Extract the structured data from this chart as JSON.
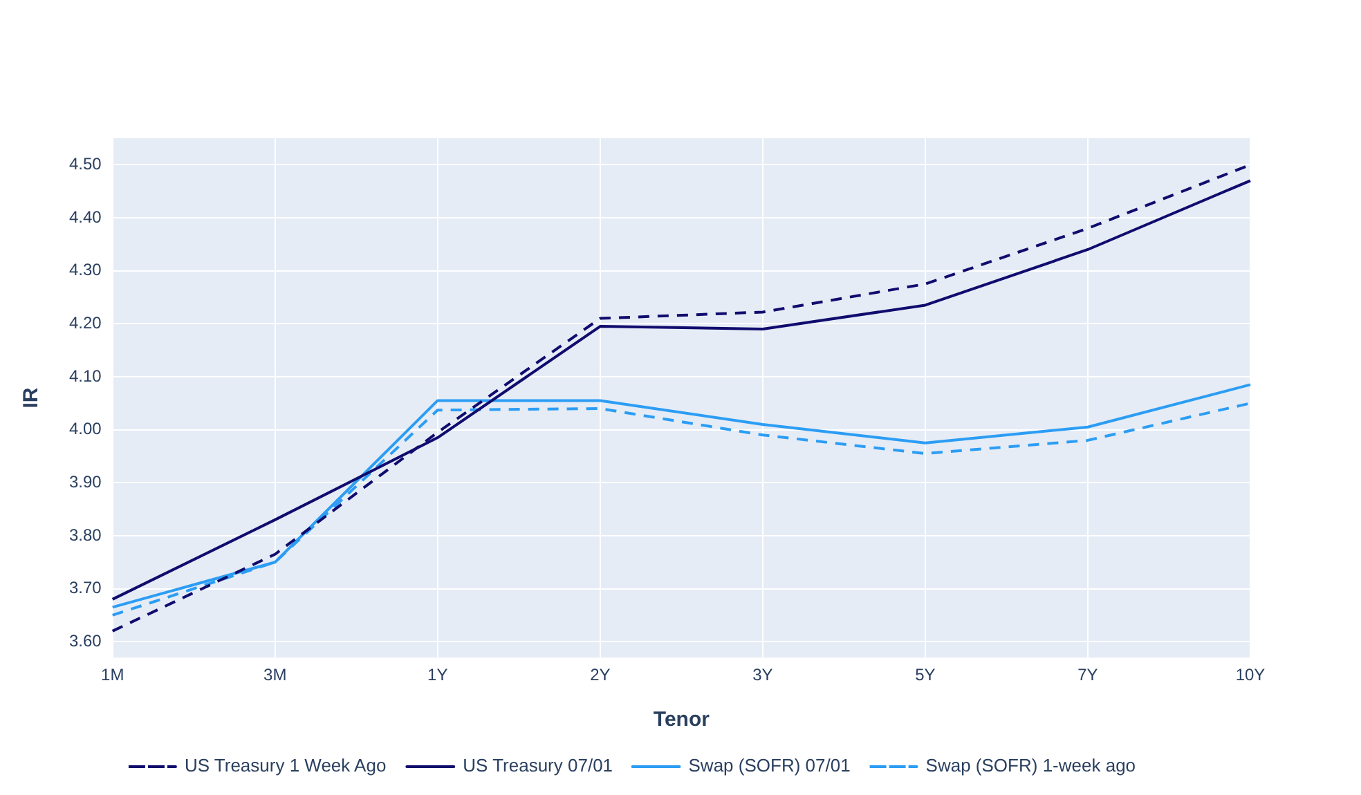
{
  "chart_data": {
    "type": "line",
    "xlabel": "Tenor",
    "ylabel": "IR",
    "categories": [
      "1M",
      "3M",
      "1Y",
      "2Y",
      "3Y",
      "5Y",
      "7Y",
      "10Y"
    ],
    "series": [
      {
        "name": "US Treasury 1 Week Ago",
        "color": "#100c6e",
        "line_style": "dashed",
        "values": [
          3.62,
          3.765,
          3.995,
          4.21,
          4.222,
          4.275,
          4.38,
          4.5
        ]
      },
      {
        "name": "US Treasury 07/01",
        "color": "#100c6e",
        "line_style": "solid",
        "values": [
          3.68,
          3.83,
          3.985,
          4.195,
          4.19,
          4.235,
          4.34,
          4.47
        ]
      },
      {
        "name": "Swap (SOFR) 07/01",
        "color": "#2c9df4",
        "line_style": "solid",
        "values": [
          3.665,
          3.75,
          4.055,
          4.055,
          4.01,
          3.975,
          4.005,
          4.085
        ]
      },
      {
        "name": "Swap (SOFR) 1-week ago",
        "color": "#2c9df4",
        "line_style": "dashed",
        "values": [
          3.65,
          3.75,
          4.037,
          4.04,
          3.99,
          3.955,
          3.98,
          4.05
        ]
      }
    ],
    "ylim": [
      3.57,
      4.55
    ],
    "yticks": [
      {
        "value": 3.6,
        "label": "3.60"
      },
      {
        "value": 3.7,
        "label": "3.70"
      },
      {
        "value": 3.8,
        "label": "3.80"
      },
      {
        "value": 3.9,
        "label": "3.90"
      },
      {
        "value": 4.0,
        "label": "4.00"
      },
      {
        "value": 4.1,
        "label": "4.10"
      },
      {
        "value": 4.2,
        "label": "4.20"
      },
      {
        "value": 4.3,
        "label": "4.30"
      },
      {
        "value": 4.4,
        "label": "4.40"
      },
      {
        "value": 4.5,
        "label": "4.50"
      }
    ],
    "grid": true,
    "legend": "bottom",
    "marker": "none"
  }
}
